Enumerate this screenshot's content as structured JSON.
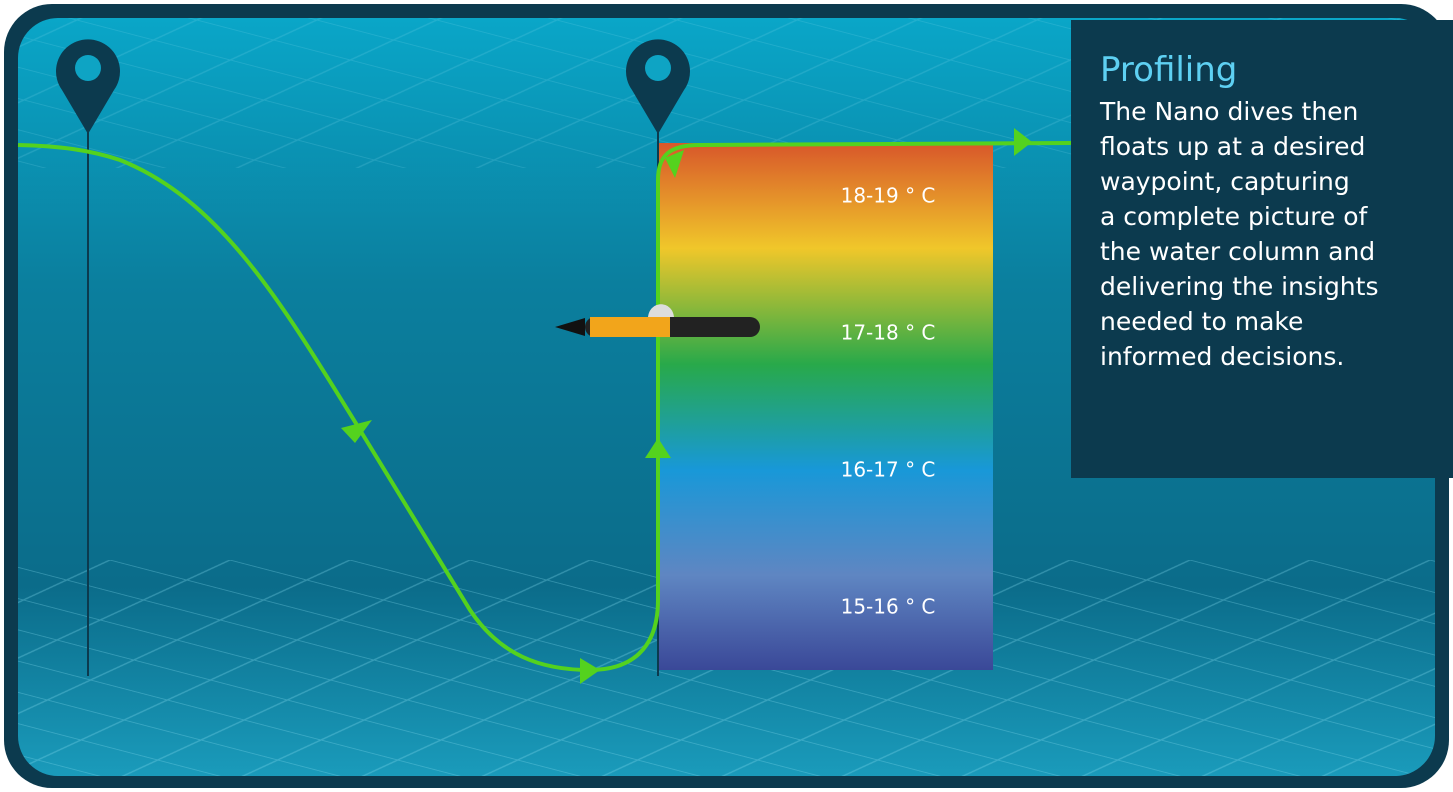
{
  "panel": {
    "title": "Profiling",
    "lines": [
      "The Nano dives then",
      "floats up at a desired",
      "waypoint, capturing",
      "a complete picture of",
      "the water column and",
      "delivering the insights",
      "needed to make",
      "informed decisions."
    ]
  },
  "temperature_bands": [
    "18-19 ° C",
    "17-18 ° C",
    "16-17 ° C",
    "15-16 ° C"
  ]
}
